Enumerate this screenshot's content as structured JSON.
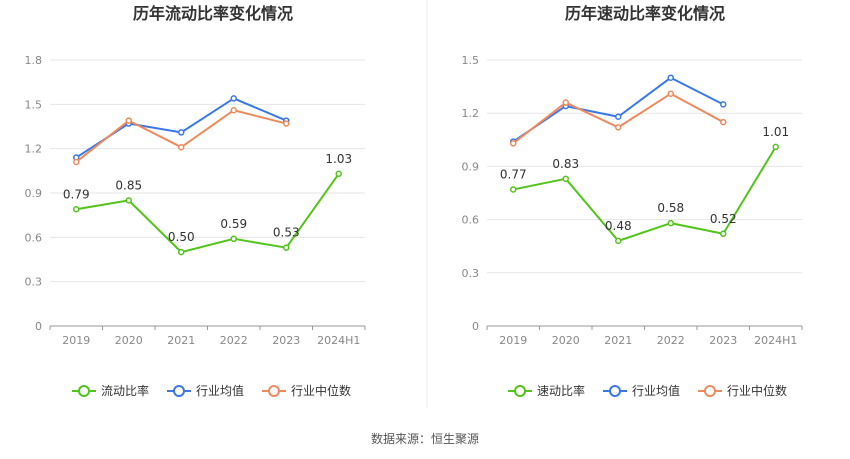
{
  "source_text": "数据来源：恒生聚源",
  "chart_data": [
    {
      "type": "line",
      "title": "历年流动比率变化情况",
      "xlabel": "",
      "ylabel": "",
      "categories": [
        "2019",
        "2020",
        "2021",
        "2022",
        "2023",
        "2024H1"
      ],
      "yticks": [
        "0",
        "0.3",
        "0.6",
        "0.9",
        "1.2",
        "1.5",
        "1.8"
      ],
      "ylim": [
        0,
        1.8
      ],
      "grid": true,
      "legend_position": "bottom",
      "series": [
        {
          "name": "流动比率",
          "color": "#52c41a",
          "values": [
            0.79,
            0.85,
            0.5,
            0.59,
            0.53,
            1.03
          ],
          "labels": [
            "0.79",
            "0.85",
            "0.50",
            "0.59",
            "0.53",
            "1.03"
          ]
        },
        {
          "name": "行业均值",
          "color": "#3b78e7",
          "values": [
            1.14,
            1.37,
            1.31,
            1.54,
            1.39,
            null
          ]
        },
        {
          "name": "行业中位数",
          "color": "#f08a5d",
          "values": [
            1.11,
            1.39,
            1.21,
            1.46,
            1.37,
            null
          ]
        }
      ]
    },
    {
      "type": "line",
      "title": "历年速动比率变化情况",
      "xlabel": "",
      "ylabel": "",
      "categories": [
        "2019",
        "2020",
        "2021",
        "2022",
        "2023",
        "2024H1"
      ],
      "yticks": [
        "0",
        "0.3",
        "0.6",
        "0.9",
        "1.2",
        "1.5"
      ],
      "ylim": [
        0,
        1.5
      ],
      "grid": true,
      "legend_position": "bottom",
      "series": [
        {
          "name": "速动比率",
          "color": "#52c41a",
          "values": [
            0.77,
            0.83,
            0.48,
            0.58,
            0.52,
            1.01
          ],
          "labels": [
            "0.77",
            "0.83",
            "0.48",
            "0.58",
            "0.52",
            "1.01"
          ]
        },
        {
          "name": "行业均值",
          "color": "#3b78e7",
          "values": [
            1.04,
            1.24,
            1.18,
            1.4,
            1.25,
            null
          ]
        },
        {
          "name": "行业中位数",
          "color": "#f08a5d",
          "values": [
            1.03,
            1.26,
            1.12,
            1.31,
            1.15,
            null
          ]
        }
      ]
    }
  ]
}
